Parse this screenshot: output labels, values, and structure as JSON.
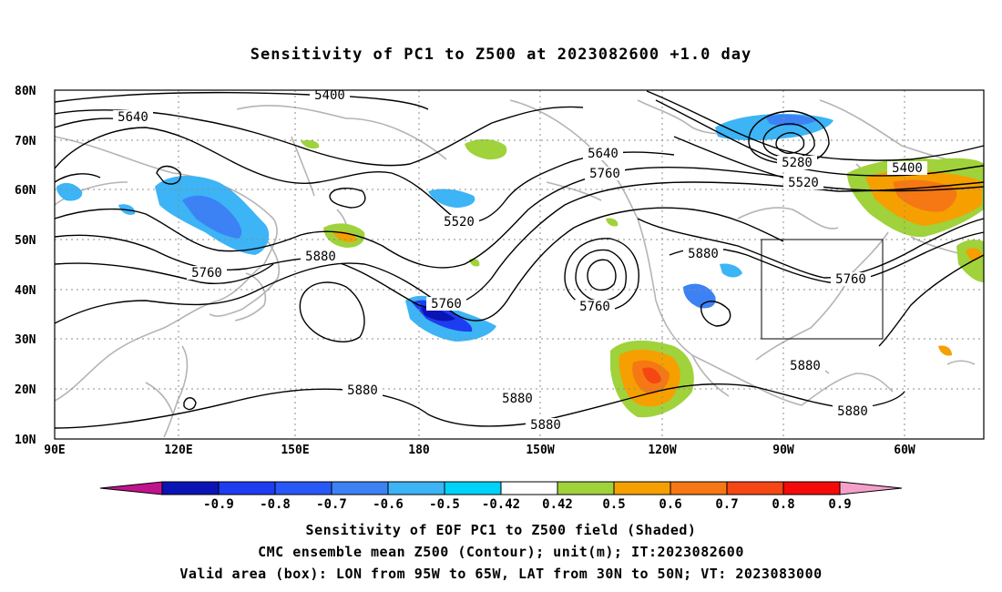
{
  "title": "Sensitivity of PC1 to Z500 at 2023082600 +1.0 day",
  "map": {
    "lon_range": [
      "90E",
      "70W"
    ],
    "lat_range": [
      "10N",
      "80N"
    ],
    "lat_labels": [
      "80N",
      "70N",
      "60N",
      "50N",
      "40N",
      "30N",
      "20N",
      "10N"
    ],
    "lon_labels": [
      "90E",
      "120E",
      "150E",
      "180",
      "150W",
      "120W",
      "90W",
      "60W"
    ],
    "contour_labels": [
      {
        "text": "5400"
      },
      {
        "text": "5640"
      },
      {
        "text": "5520"
      },
      {
        "text": "5640"
      },
      {
        "text": "5760"
      },
      {
        "text": "5280"
      },
      {
        "text": "5520"
      },
      {
        "text": "5400"
      },
      {
        "text": "5760"
      },
      {
        "text": "5880"
      },
      {
        "text": "5760"
      },
      {
        "text": "5760"
      },
      {
        "text": "5880"
      },
      {
        "text": "5760"
      },
      {
        "text": "5880"
      },
      {
        "text": "5880"
      },
      {
        "text": "5880"
      },
      {
        "text": "5880"
      },
      {
        "text": "5880"
      }
    ],
    "valid_box": {
      "lon_from": "95W",
      "lon_to": "65W",
      "lat_from": "30N",
      "lat_to": "50N"
    }
  },
  "colorbar": {
    "labels": [
      "-0.9",
      "-0.8",
      "-0.7",
      "-0.6",
      "-0.5",
      "-0.42",
      "0.42",
      "0.5",
      "0.6",
      "0.7",
      "0.8",
      "0.9"
    ],
    "colors": [
      "#c0148c",
      "#0a14b4",
      "#1e3cf0",
      "#2858f8",
      "#3c82f5",
      "#3cb4f5",
      "#00d2f8",
      "#ffffff",
      "#a0d23c",
      "#f5a000",
      "#f57814",
      "#f54614",
      "#f50a0a",
      "#f5a0c8"
    ]
  },
  "captions": [
    "Sensitivity of EOF PC1 to Z500 field (Shaded)",
    "CMC ensemble mean Z500 (Contour); unit(m); IT:2023082600",
    "Valid area (box): LON from 95W to 65W, LAT from 30N to 50N; VT: 2023083000"
  ]
}
